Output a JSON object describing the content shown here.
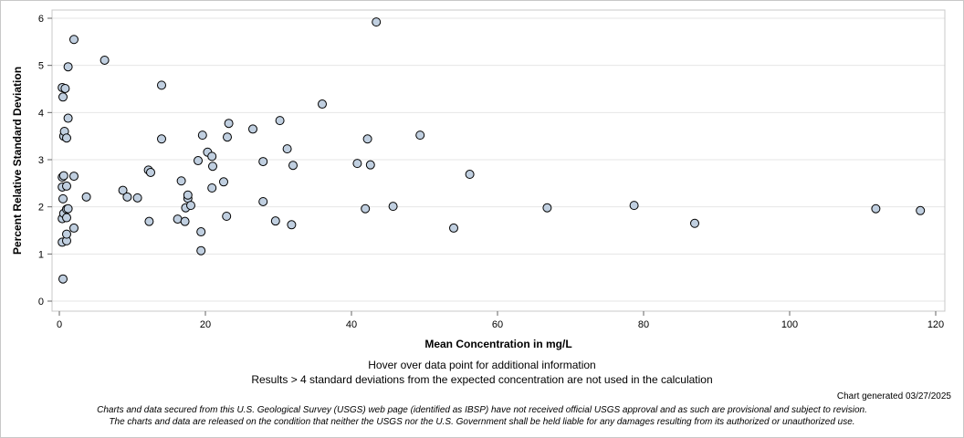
{
  "chart_data": {
    "type": "scatter",
    "title": "",
    "xlabel": "Mean Concentration in mg/L",
    "ylabel": "Percent Relative Standard Deviation",
    "xlim": [
      0,
      120
    ],
    "ylim": [
      0,
      6
    ],
    "xticks": [
      0,
      20,
      40,
      60,
      80,
      100,
      120
    ],
    "yticks": [
      0,
      1,
      2,
      3,
      4,
      5,
      6
    ],
    "grid": "horizontal",
    "marker_fill": "#c0cfe0",
    "marker_edge": "#000000",
    "points": [
      {
        "x": 0.5,
        "y": 0.47
      },
      {
        "x": 0.4,
        "y": 1.25
      },
      {
        "x": 0.4,
        "y": 1.75
      },
      {
        "x": 0.6,
        "y": 1.86
      },
      {
        "x": 0.5,
        "y": 2.17
      },
      {
        "x": 0.4,
        "y": 2.42
      },
      {
        "x": 0.4,
        "y": 2.63
      },
      {
        "x": 0.6,
        "y": 2.66
      },
      {
        "x": 0.6,
        "y": 3.5
      },
      {
        "x": 0.7,
        "y": 3.6
      },
      {
        "x": 0.5,
        "y": 4.33
      },
      {
        "x": 0.4,
        "y": 4.53
      },
      {
        "x": 0.8,
        "y": 4.51
      },
      {
        "x": 1.0,
        "y": 1.28
      },
      {
        "x": 1.0,
        "y": 1.42
      },
      {
        "x": 1.0,
        "y": 1.77
      },
      {
        "x": 1.0,
        "y": 1.95
      },
      {
        "x": 1.2,
        "y": 1.96
      },
      {
        "x": 1.0,
        "y": 2.44
      },
      {
        "x": 1.0,
        "y": 3.46
      },
      {
        "x": 1.2,
        "y": 3.88
      },
      {
        "x": 1.2,
        "y": 4.97
      },
      {
        "x": 2.0,
        "y": 1.55
      },
      {
        "x": 2.0,
        "y": 2.65
      },
      {
        "x": 2.0,
        "y": 5.55
      },
      {
        "x": 3.7,
        "y": 2.21
      },
      {
        "x": 6.2,
        "y": 5.11
      },
      {
        "x": 8.7,
        "y": 2.35
      },
      {
        "x": 9.3,
        "y": 2.21
      },
      {
        "x": 10.7,
        "y": 2.19
      },
      {
        "x": 12.3,
        "y": 1.69
      },
      {
        "x": 12.2,
        "y": 2.78
      },
      {
        "x": 12.5,
        "y": 2.73
      },
      {
        "x": 14.0,
        "y": 3.44
      },
      {
        "x": 14.0,
        "y": 4.58
      },
      {
        "x": 16.2,
        "y": 1.74
      },
      {
        "x": 16.7,
        "y": 2.55
      },
      {
        "x": 17.2,
        "y": 1.69
      },
      {
        "x": 17.3,
        "y": 1.98
      },
      {
        "x": 17.6,
        "y": 2.18
      },
      {
        "x": 17.6,
        "y": 2.25
      },
      {
        "x": 18.0,
        "y": 2.03
      },
      {
        "x": 19.0,
        "y": 2.98
      },
      {
        "x": 19.4,
        "y": 1.07
      },
      {
        "x": 19.4,
        "y": 1.47
      },
      {
        "x": 19.6,
        "y": 3.52
      },
      {
        "x": 20.3,
        "y": 3.16
      },
      {
        "x": 20.9,
        "y": 2.4
      },
      {
        "x": 21.0,
        "y": 2.86
      },
      {
        "x": 20.9,
        "y": 3.07
      },
      {
        "x": 22.5,
        "y": 2.53
      },
      {
        "x": 22.9,
        "y": 1.8
      },
      {
        "x": 23.0,
        "y": 3.48
      },
      {
        "x": 23.2,
        "y": 3.77
      },
      {
        "x": 26.5,
        "y": 3.65
      },
      {
        "x": 27.9,
        "y": 2.11
      },
      {
        "x": 27.9,
        "y": 2.96
      },
      {
        "x": 29.6,
        "y": 1.7
      },
      {
        "x": 30.2,
        "y": 3.83
      },
      {
        "x": 31.2,
        "y": 3.23
      },
      {
        "x": 31.8,
        "y": 1.62
      },
      {
        "x": 32.0,
        "y": 2.88
      },
      {
        "x": 36.0,
        "y": 4.18
      },
      {
        "x": 40.8,
        "y": 2.92
      },
      {
        "x": 41.9,
        "y": 1.96
      },
      {
        "x": 42.2,
        "y": 3.44
      },
      {
        "x": 42.6,
        "y": 2.89
      },
      {
        "x": 43.4,
        "y": 5.92
      },
      {
        "x": 45.7,
        "y": 2.01
      },
      {
        "x": 49.4,
        "y": 3.52
      },
      {
        "x": 54.0,
        "y": 1.55
      },
      {
        "x": 56.2,
        "y": 2.69
      },
      {
        "x": 66.8,
        "y": 1.98
      },
      {
        "x": 78.7,
        "y": 2.03
      },
      {
        "x": 87.0,
        "y": 1.65
      },
      {
        "x": 111.8,
        "y": 1.96
      },
      {
        "x": 117.9,
        "y": 1.92
      }
    ]
  },
  "notes": {
    "hover": "Hover over data point for additional information",
    "results": "Results > 4 standard deviations from the expected concentration are not used in the calculation",
    "generated": "Chart generated 03/27/2025",
    "disclaimer_line1": "Charts and data secured from this U.S. Geological Survey (USGS) web page (identified as IBSP) have not received official USGS approval and as such are provisional and subject to revision.",
    "disclaimer_line2": "The charts and data are released on the condition that neither the USGS nor the U.S. Government shall be held liable for any damages resulting from its authorized or unauthorized use."
  }
}
